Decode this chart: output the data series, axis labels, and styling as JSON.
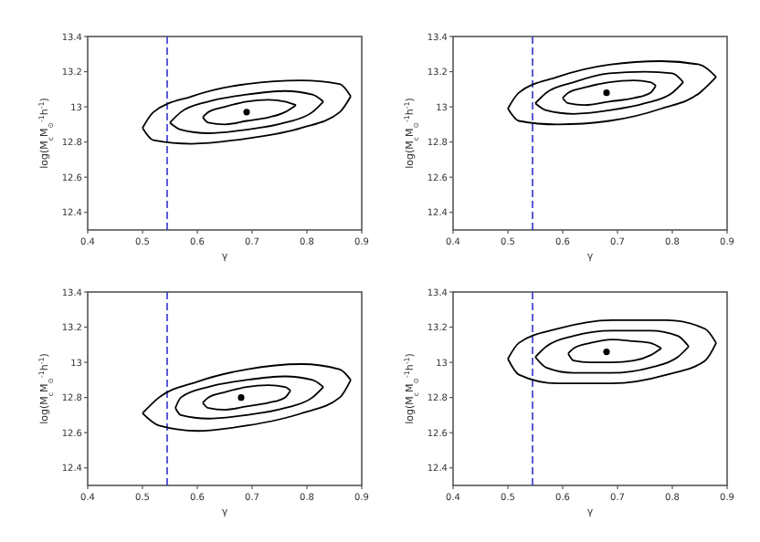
{
  "chart_data": [
    {
      "type": "line",
      "xlabel": "γ",
      "ylabel": "log(M$_{c}$M$_{⊙}$$^{-1}$h$^{-1}$)",
      "xlim": [
        0.4,
        0.9
      ],
      "xticks": [
        0.4,
        0.5,
        0.6,
        0.7,
        0.8,
        0.9
      ],
      "ylim": [
        12.3,
        13.4
      ],
      "yticks": [
        12.4,
        12.6,
        12.8,
        13.0,
        13.2,
        13.4
      ],
      "ref_lines": [
        {
          "axis": "x",
          "value": 0.545,
          "color": "#3333cc",
          "line_style": "dashed"
        }
      ],
      "series": [
        {
          "color": "#000000",
          "x": [
            0.61,
            0.62,
            0.65,
            0.69,
            0.73,
            0.76,
            0.78
          ],
          "values": [
            12.94,
            12.97,
            13.0,
            13.03,
            13.04,
            13.03,
            13.01
          ]
        },
        {
          "x": [
            0.61,
            0.62,
            0.65,
            0.69,
            0.73,
            0.76,
            0.78
          ],
          "values": [
            12.94,
            12.91,
            12.9,
            12.92,
            12.94,
            12.97,
            13.01
          ]
        },
        {
          "color": "#000000",
          "x": [
            0.55,
            0.57,
            0.62,
            0.69,
            0.76,
            0.81,
            0.83
          ],
          "values": [
            12.91,
            12.97,
            13.03,
            13.07,
            13.09,
            13.07,
            13.03
          ]
        },
        {
          "x": [
            0.55,
            0.57,
            0.62,
            0.69,
            0.76,
            0.81,
            0.83
          ],
          "values": [
            12.91,
            12.87,
            12.85,
            12.87,
            12.91,
            12.97,
            13.03
          ]
        },
        {
          "color": "#000000",
          "x": [
            0.5,
            0.52,
            0.59,
            0.69,
            0.79,
            0.86,
            0.88
          ],
          "values": [
            12.88,
            12.97,
            13.06,
            13.13,
            13.15,
            13.13,
            13.06
          ]
        },
        {
          "x": [
            0.5,
            0.52,
            0.59,
            0.69,
            0.79,
            0.86,
            0.88
          ],
          "values": [
            12.88,
            12.81,
            12.79,
            12.82,
            12.88,
            12.97,
            13.06
          ]
        },
        {
          "type": "scatter",
          "color": "#000000",
          "marker": "circle",
          "x": [
            0.69
          ],
          "values": [
            12.97
          ]
        }
      ]
    },
    {
      "type": "line",
      "xlabel": "γ",
      "ylabel": "log(M$_{c}$M$_{⊙}$$^{-1}$h$^{-1}$)",
      "xlim": [
        0.4,
        0.9
      ],
      "xticks": [
        0.4,
        0.5,
        0.6,
        0.7,
        0.8,
        0.9
      ],
      "ylim": [
        12.3,
        13.4
      ],
      "yticks": [
        12.4,
        12.6,
        12.8,
        13.0,
        13.2,
        13.4
      ],
      "ref_lines": [
        {
          "axis": "x",
          "value": 0.545,
          "color": "#3333cc",
          "line_style": "dashed"
        }
      ],
      "series": [
        {
          "color": "#000000",
          "x": [
            0.6,
            0.61,
            0.64,
            0.685,
            0.73,
            0.76,
            0.77
          ],
          "values": [
            13.05,
            13.08,
            13.11,
            13.14,
            13.15,
            13.14,
            13.12
          ]
        },
        {
          "x": [
            0.6,
            0.61,
            0.64,
            0.685,
            0.73,
            0.76,
            0.77
          ],
          "values": [
            13.05,
            13.02,
            13.01,
            13.03,
            13.05,
            13.08,
            13.12
          ]
        },
        {
          "color": "#000000",
          "x": [
            0.55,
            0.57,
            0.62,
            0.685,
            0.75,
            0.8,
            0.82
          ],
          "values": [
            13.02,
            13.08,
            13.14,
            13.19,
            13.2,
            13.19,
            13.14
          ]
        },
        {
          "x": [
            0.55,
            0.57,
            0.62,
            0.685,
            0.75,
            0.8,
            0.82
          ],
          "values": [
            13.02,
            12.98,
            12.96,
            12.98,
            13.02,
            13.08,
            13.14
          ]
        },
        {
          "color": "#000000",
          "x": [
            0.5,
            0.52,
            0.59,
            0.685,
            0.78,
            0.85,
            0.88
          ],
          "values": [
            12.99,
            13.08,
            13.17,
            13.24,
            13.26,
            13.24,
            13.17
          ]
        },
        {
          "x": [
            0.5,
            0.52,
            0.59,
            0.685,
            0.78,
            0.85,
            0.88
          ],
          "values": [
            12.99,
            12.92,
            12.9,
            12.92,
            12.99,
            13.08,
            13.17
          ]
        },
        {
          "type": "scatter",
          "color": "#000000",
          "marker": "circle",
          "x": [
            0.68
          ],
          "values": [
            13.08
          ]
        }
      ]
    },
    {
      "type": "line",
      "xlabel": "γ",
      "ylabel": "log(M$_{c}$M$_{⊙}$$^{-1}$h$^{-1}$)",
      "xlim": [
        0.4,
        0.9
      ],
      "xticks": [
        0.4,
        0.5,
        0.6,
        0.7,
        0.8,
        0.9
      ],
      "ylim": [
        12.3,
        13.4
      ],
      "yticks": [
        12.4,
        12.6,
        12.8,
        13.0,
        13.2,
        13.4
      ],
      "ref_lines": [
        {
          "axis": "x",
          "value": 0.545,
          "color": "#3333cc",
          "line_style": "dashed"
        }
      ],
      "series": [
        {
          "color": "#000000",
          "x": [
            0.61,
            0.62,
            0.65,
            0.69,
            0.73,
            0.76,
            0.77
          ],
          "values": [
            12.77,
            12.8,
            12.83,
            12.86,
            12.87,
            12.86,
            12.84
          ]
        },
        {
          "x": [
            0.61,
            0.62,
            0.65,
            0.69,
            0.73,
            0.76,
            0.77
          ],
          "values": [
            12.77,
            12.74,
            12.73,
            12.75,
            12.77,
            12.8,
            12.84
          ]
        },
        {
          "color": "#000000",
          "x": [
            0.56,
            0.57,
            0.62,
            0.69,
            0.76,
            0.81,
            0.83
          ],
          "values": [
            12.74,
            12.8,
            12.86,
            12.9,
            12.92,
            12.9,
            12.86
          ]
        },
        {
          "x": [
            0.56,
            0.57,
            0.62,
            0.69,
            0.76,
            0.81,
            0.83
          ],
          "values": [
            12.74,
            12.7,
            12.68,
            12.7,
            12.74,
            12.8,
            12.86
          ]
        },
        {
          "color": "#000000",
          "x": [
            0.5,
            0.53,
            0.6,
            0.69,
            0.79,
            0.86,
            0.88
          ],
          "values": [
            12.71,
            12.8,
            12.89,
            12.96,
            12.99,
            12.96,
            12.9
          ]
        },
        {
          "x": [
            0.5,
            0.53,
            0.6,
            0.69,
            0.79,
            0.86,
            0.88
          ],
          "values": [
            12.71,
            12.64,
            12.61,
            12.64,
            12.71,
            12.8,
            12.9
          ]
        },
        {
          "type": "scatter",
          "color": "#000000",
          "marker": "circle",
          "x": [
            0.68
          ],
          "values": [
            12.8
          ]
        }
      ]
    },
    {
      "type": "line",
      "xlabel": "γ",
      "ylabel": "log(M$_{c}$M$_{⊙}$$^{-1}$h$^{-1}$)",
      "xlim": [
        0.4,
        0.9
      ],
      "xticks": [
        0.4,
        0.5,
        0.6,
        0.7,
        0.8,
        0.9
      ],
      "ylim": [
        12.3,
        13.4
      ],
      "yticks": [
        12.4,
        12.6,
        12.8,
        13.0,
        13.2,
        13.4
      ],
      "ref_lines": [
        {
          "axis": "x",
          "value": 0.545,
          "color": "#3333cc",
          "line_style": "dashed"
        }
      ],
      "series": [
        {
          "color": "#000000",
          "x": [
            0.61,
            0.62,
            0.65,
            0.69,
            0.73,
            0.76,
            0.78
          ],
          "values": [
            13.05,
            13.08,
            13.11,
            13.13,
            13.12,
            13.11,
            13.08
          ]
        },
        {
          "x": [
            0.61,
            0.62,
            0.65,
            0.69,
            0.73,
            0.76,
            0.78
          ],
          "values": [
            13.05,
            13.01,
            13.0,
            13.0,
            13.01,
            13.04,
            13.08
          ]
        },
        {
          "color": "#000000",
          "x": [
            0.55,
            0.57,
            0.62,
            0.69,
            0.76,
            0.81,
            0.83
          ],
          "values": [
            13.03,
            13.09,
            13.15,
            13.18,
            13.18,
            13.15,
            13.09
          ]
        },
        {
          "x": [
            0.55,
            0.57,
            0.62,
            0.69,
            0.76,
            0.81,
            0.83
          ],
          "values": [
            13.03,
            12.97,
            12.94,
            12.94,
            12.97,
            13.03,
            13.09
          ]
        },
        {
          "color": "#000000",
          "x": [
            0.5,
            0.52,
            0.59,
            0.69,
            0.79,
            0.86,
            0.88
          ],
          "values": [
            13.02,
            13.11,
            13.19,
            13.24,
            13.24,
            13.19,
            13.11
          ]
        },
        {
          "x": [
            0.5,
            0.52,
            0.59,
            0.69,
            0.79,
            0.86,
            0.88
          ],
          "values": [
            13.02,
            12.93,
            12.88,
            12.88,
            12.93,
            13.01,
            13.11
          ]
        },
        {
          "type": "scatter",
          "color": "#000000",
          "marker": "circle",
          "x": [
            0.68
          ],
          "values": [
            13.06
          ]
        }
      ]
    }
  ]
}
